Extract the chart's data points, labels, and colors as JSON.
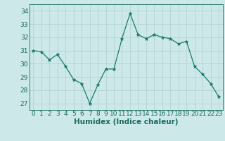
{
  "x": [
    0,
    1,
    2,
    3,
    4,
    5,
    6,
    7,
    8,
    9,
    10,
    11,
    12,
    13,
    14,
    15,
    16,
    17,
    18,
    19,
    20,
    21,
    22,
    23
  ],
  "y": [
    31.0,
    30.9,
    30.3,
    30.7,
    29.8,
    28.8,
    28.5,
    27.0,
    28.4,
    29.6,
    29.6,
    31.9,
    33.8,
    32.2,
    31.9,
    32.2,
    32.0,
    31.9,
    31.5,
    31.7,
    29.8,
    29.2,
    28.5,
    27.5
  ],
  "line_color": "#1a7a6e",
  "marker": "*",
  "bg_color": "#cce8e8",
  "grid_color": "#b0d0d0",
  "xlabel": "Humidex (Indice chaleur)",
  "ylim": [
    26.5,
    34.5
  ],
  "xlim": [
    -0.5,
    23.5
  ],
  "yticks": [
    27,
    28,
    29,
    30,
    31,
    32,
    33,
    34
  ],
  "xticks": [
    0,
    1,
    2,
    3,
    4,
    5,
    6,
    7,
    8,
    9,
    10,
    11,
    12,
    13,
    14,
    15,
    16,
    17,
    18,
    19,
    20,
    21,
    22,
    23
  ],
  "tick_color": "#1a6b60",
  "label_color": "#1a6b60",
  "font_size": 6.5,
  "xlabel_fontsize": 7.5
}
